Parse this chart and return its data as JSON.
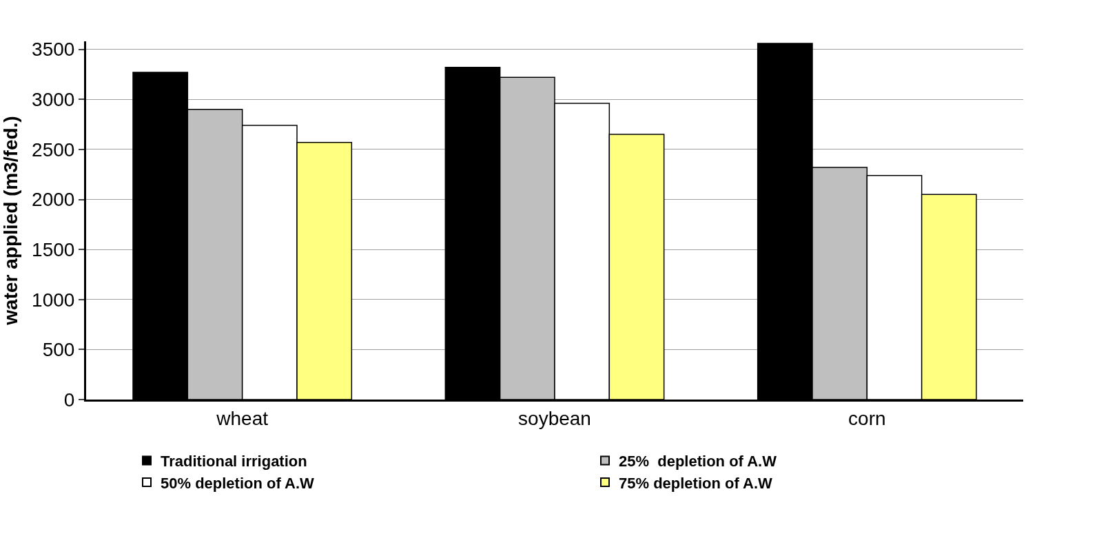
{
  "chart_data": {
    "type": "bar",
    "ylabel": "water applied (m3/fed.)",
    "categories": [
      "wheat",
      "soybean",
      "corn"
    ],
    "series": [
      {
        "name": "Traditional irrigation",
        "color": "#000000",
        "values": [
          3270,
          3320,
          3560
        ]
      },
      {
        "name": "25%  depletion of A.W",
        "color": "#bfbfbf",
        "values": [
          2900,
          3220,
          2320
        ]
      },
      {
        "name": "50% depletion of A.W",
        "color": "#ffffff",
        "values": [
          2740,
          2960,
          2240
        ]
      },
      {
        "name": "75% depletion of A.W",
        "color": "#ffff80",
        "values": [
          2570,
          2650,
          2050
        ]
      }
    ],
    "ylim": [
      0,
      3580
    ],
    "yticks": [
      0,
      500,
      1000,
      1500,
      2000,
      2500,
      3000,
      3500
    ],
    "grid": "y",
    "legend": "bottom"
  }
}
